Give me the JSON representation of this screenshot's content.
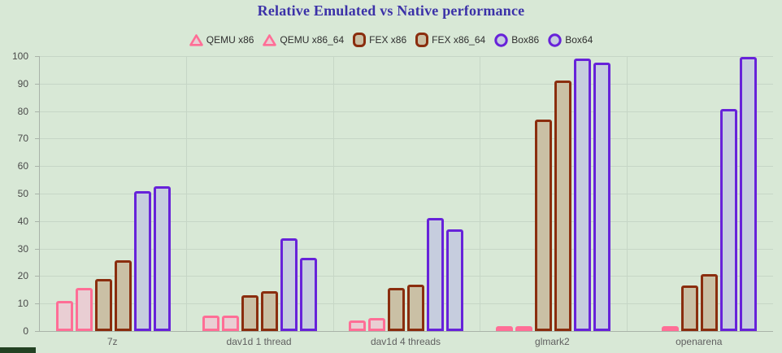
{
  "chart_data": {
    "type": "bar",
    "title": "Relative Emulated vs Native performance",
    "title_color": "#3b31a8",
    "categories": [
      "7z",
      "dav1d 1 thread",
      "dav1d 4 threads",
      "glmark2",
      "openarena"
    ],
    "series": [
      {
        "name": "QEMU x86",
        "marker": "triangle",
        "stroke": "#ff6e96",
        "fill": "#e9ced3",
        "values": [
          11,
          5.7,
          3.8,
          1,
          null
        ]
      },
      {
        "name": "QEMU x86_64",
        "marker": "triangle",
        "stroke": "#ff6e96",
        "fill": "#e9ced3",
        "values": [
          15.7,
          5.7,
          4.7,
          1.7,
          1
        ]
      },
      {
        "name": "FEX x86",
        "marker": "square",
        "stroke": "#8a2d0e",
        "fill": "#cac0a5",
        "values": [
          18.8,
          13,
          15.8,
          77,
          16.5
        ]
      },
      {
        "name": "FEX x86_64",
        "marker": "square",
        "stroke": "#8a2d0e",
        "fill": "#cac0a5",
        "values": [
          25.8,
          14.6,
          16.8,
          91,
          20.8
        ]
      },
      {
        "name": "Box86",
        "marker": "circle",
        "stroke": "#6722d9",
        "fill": "#c6cdde",
        "values": [
          50.8,
          33.8,
          41,
          99,
          80.8
        ]
      },
      {
        "name": "Box64",
        "marker": "circle",
        "stroke": "#6722d9",
        "fill": "#c6cdde",
        "values": [
          52.8,
          26.7,
          37,
          97.7,
          99.8
        ]
      }
    ],
    "y_ticks": [
      0,
      10,
      20,
      30,
      40,
      50,
      60,
      70,
      80,
      90,
      100
    ],
    "ylim": [
      0,
      100
    ],
    "grid": true,
    "legend_position": "top"
  }
}
